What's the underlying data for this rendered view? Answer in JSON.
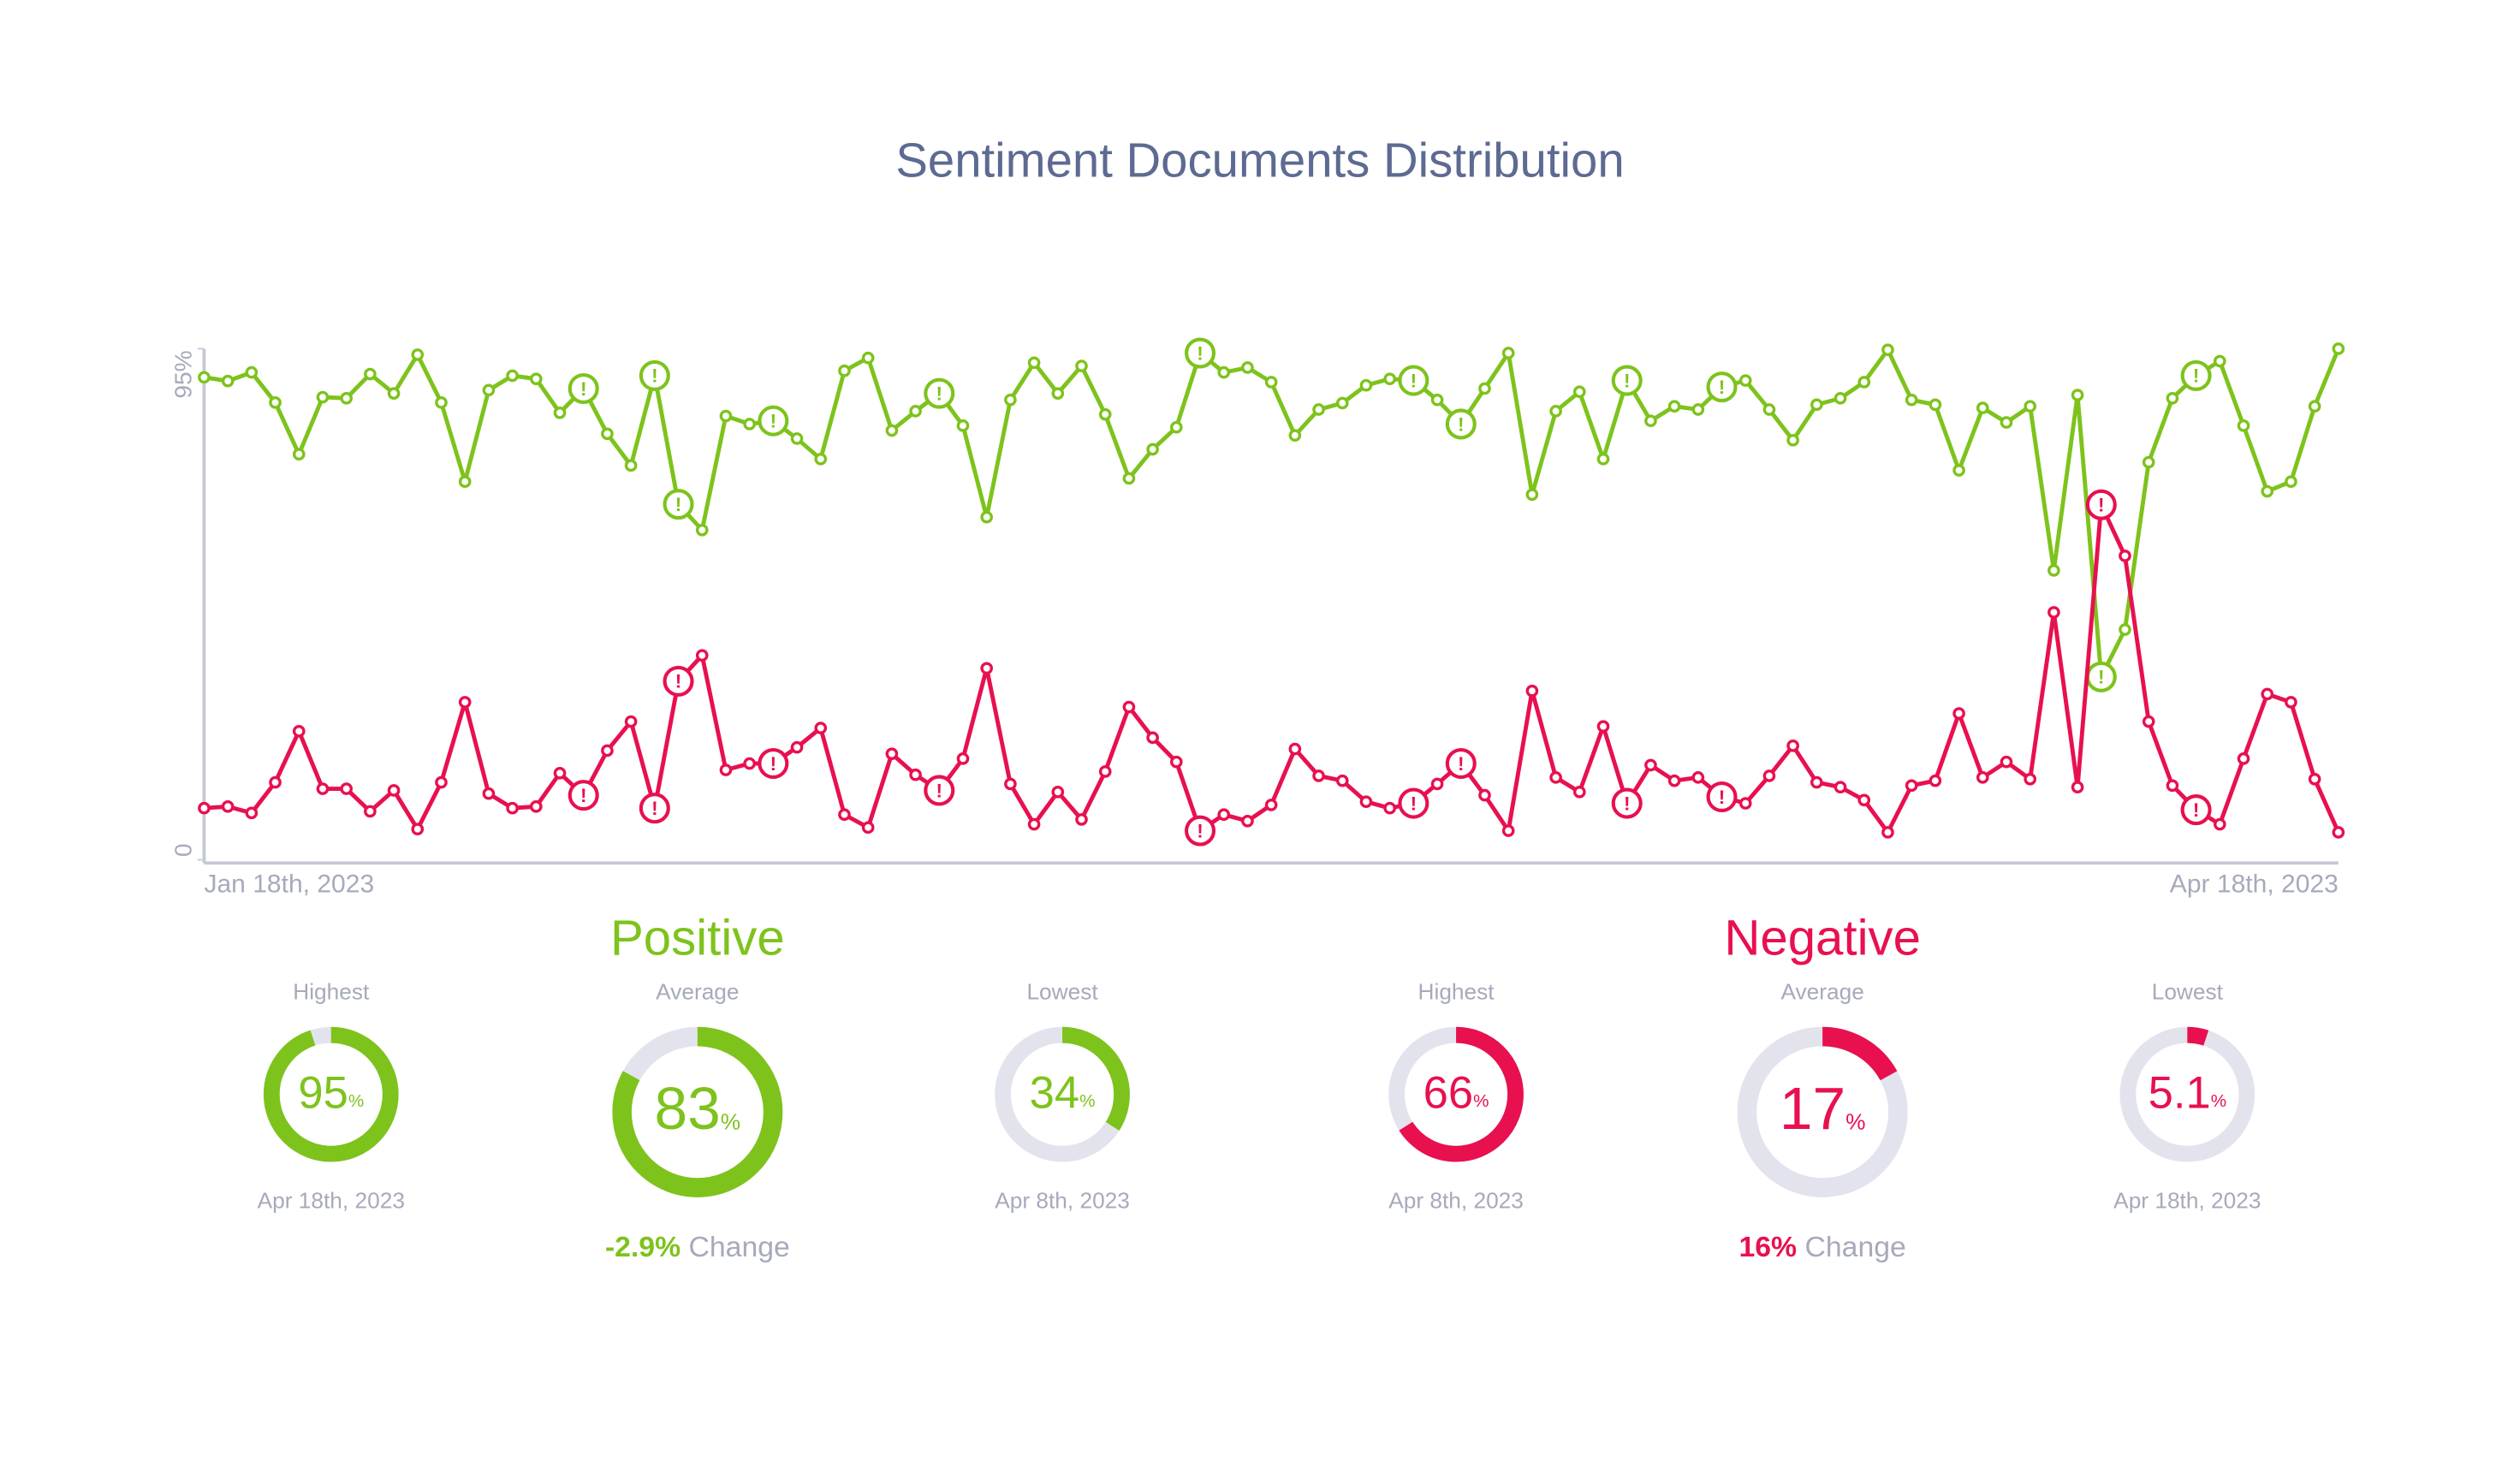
{
  "chart_data": {
    "type": "line",
    "title": "Sentiment Documents Distribution",
    "categories": [
      "Jan 18th, 2023",
      null,
      null,
      null,
      null,
      null,
      null,
      null,
      null,
      null,
      null,
      null,
      null,
      null,
      null,
      null,
      null,
      null,
      null,
      null,
      null,
      null,
      null,
      null,
      null,
      null,
      null,
      null,
      null,
      null,
      null,
      null,
      null,
      null,
      null,
      null,
      null,
      null,
      null,
      null,
      null,
      null,
      null,
      null,
      null,
      null,
      null,
      null,
      null,
      null,
      null,
      null,
      null,
      null,
      null,
      null,
      null,
      null,
      null,
      null,
      null,
      null,
      null,
      null,
      null,
      null,
      null,
      null,
      null,
      null,
      null,
      null,
      null,
      null,
      null,
      null,
      null,
      null,
      null,
      null,
      null,
      null,
      null,
      null,
      null,
      null,
      null,
      null,
      null,
      null,
      "Apr 18th, 2023"
    ],
    "ylim": [
      0,
      95
    ],
    "yticks": [
      0,
      {
        "value": 95,
        "label": "95%"
      }
    ],
    "alert_symbol": "!",
    "series": [
      {
        "name": "Positive",
        "color": "#7dc31c",
        "alerts": [
          16,
          19,
          20,
          24,
          31,
          42,
          51,
          53,
          60,
          64,
          80,
          84
        ],
        "values": [
          89.7,
          89,
          90.6,
          85,
          75.4,
          86,
          85.8,
          90.3,
          86.7,
          93.9,
          85,
          70.3,
          87.3,
          90,
          89.4,
          83.1,
          87.6,
          79.2,
          73.3,
          90,
          66.1,
          61.3,
          82.5,
          81,
          81.6,
          78.3,
          74.5,
          90.9,
          93.3,
          79.8,
          83.4,
          86.7,
          80.7,
          63.7,
          85.5,
          92.4,
          86.7,
          91.8,
          82.8,
          70.9,
          76.3,
          80.4,
          94.2,
          90.6,
          91.5,
          88.8,
          78.9,
          83.7,
          84.9,
          88.2,
          89.4,
          89.1,
          85.5,
          81,
          87.6,
          94.2,
          67.9,
          83.4,
          87,
          74.5,
          89.1,
          81.6,
          84.3,
          83.7,
          87.9,
          89.1,
          83.7,
          78,
          84.6,
          85.8,
          88.8,
          94.8,
          85.5,
          84.6,
          72.4,
          84,
          81.3,
          84.3,
          53.8,
          86.4,
          34,
          42.8,
          73.9,
          85.8,
          90,
          92.7,
          80.7,
          68.5,
          70.3,
          84.3,
          95
        ]
      },
      {
        "name": "Negative",
        "color": "#e8104f",
        "alerts": [
          16,
          19,
          20,
          24,
          31,
          42,
          51,
          53,
          60,
          64,
          80,
          84
        ],
        "values": [
          9.6,
          9.9,
          8.7,
          14.4,
          23.9,
          13.2,
          13.2,
          9,
          12.9,
          5.7,
          14.4,
          29.3,
          12.3,
          9.6,
          9.9,
          16.1,
          12,
          20.3,
          25.7,
          9.6,
          33.2,
          38,
          16.7,
          17.9,
          17.9,
          20.9,
          24.5,
          8.4,
          6,
          19.7,
          15.8,
          12.9,
          18.8,
          35.6,
          14.1,
          6.6,
          12.6,
          7.5,
          16.4,
          28.4,
          22.7,
          18.2,
          5.4,
          8.4,
          7.2,
          10.2,
          20.6,
          15.6,
          14.7,
          10.8,
          9.6,
          10.5,
          14.1,
          17.9,
          12,
          5.4,
          31.4,
          15.3,
          12.6,
          24.8,
          10.5,
          17.6,
          14.7,
          15.3,
          11.7,
          10.5,
          15.6,
          21.2,
          14.4,
          13.5,
          11.1,
          5.1,
          13.8,
          14.7,
          27.2,
          15.3,
          18.2,
          15,
          46,
          13.5,
          66,
          56.5,
          25.7,
          13.8,
          9.3,
          6.6,
          18.8,
          30.8,
          29.3,
          15,
          5.1
        ]
      }
    ]
  },
  "summary": [
    {
      "title": "Positive",
      "color": "#7dc31c",
      "stats": [
        {
          "label": "Highest",
          "value": 95,
          "unit": "%",
          "date": "Apr 18th, 2023"
        },
        {
          "label": "Average",
          "value": 83,
          "unit": "%"
        },
        {
          "label": "Lowest",
          "value": 34,
          "unit": "%",
          "date": "Apr 8th, 2023"
        }
      ],
      "change": {
        "value": "-2.9%",
        "label": "Change"
      }
    },
    {
      "title": "Negative",
      "color": "#e8104f",
      "stats": [
        {
          "label": "Highest",
          "value": 66,
          "unit": "%",
          "date": "Apr 8th, 2023"
        },
        {
          "label": "Average",
          "value": 17,
          "unit": "%"
        },
        {
          "label": "Lowest",
          "value": 5.1,
          "unit": "%",
          "date": "Apr 18th, 2023"
        }
      ],
      "change": {
        "value": "16%",
        "label": "Change"
      }
    }
  ]
}
